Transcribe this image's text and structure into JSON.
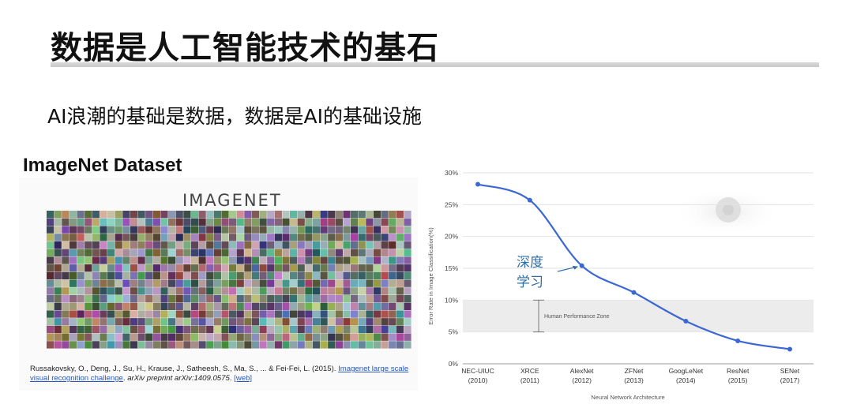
{
  "slide": {
    "title": "数据是人工智能技术的基石",
    "subtitle": "AI浪潮的基础是数据，数据是AI的基础设施"
  },
  "imagenet": {
    "dataset_title": "ImageNet Dataset",
    "logo_text": "IMAGENET",
    "citation": {
      "authors": "Russakovsky, O., Deng, J., Su, H., Krause, J., Satheesh, S., Ma, S., ... & Fei-Fei, L. (2015).",
      "link_text": "Imagenet large scale visual recognition challenge",
      "journal": "arXiv preprint arXiv:1409.0575",
      "web_link": "[web]"
    }
  },
  "chart_data": {
    "type": "line",
    "xlabel": "Neural Network Architecture",
    "ylabel": "Error Rate in Image Classification(%)",
    "ylim": [
      0,
      30
    ],
    "yticks": [
      "0%",
      "5%",
      "10%",
      "15%",
      "20%",
      "25%",
      "30%"
    ],
    "categories": [
      "NEC-UIUC",
      "XRCE",
      "AlexNet",
      "ZFNet",
      "GoogLeNet",
      "ResNet",
      "SENet"
    ],
    "years": [
      "(2010)",
      "(2011)",
      "(2012)",
      "(2013)",
      "(2014)",
      "(2015)",
      "(2017)"
    ],
    "series": [
      {
        "values": [
          28.2,
          25.7,
          15.4,
          11.2,
          6.7,
          3.6,
          2.3
        ],
        "color": "#3b67d2"
      }
    ],
    "band": {
      "label": "Human Performance Zone",
      "from": 5,
      "to": 10
    },
    "annotation": {
      "text": [
        "深度",
        "学习"
      ],
      "color": "#2f6ea8"
    },
    "grid": true
  }
}
